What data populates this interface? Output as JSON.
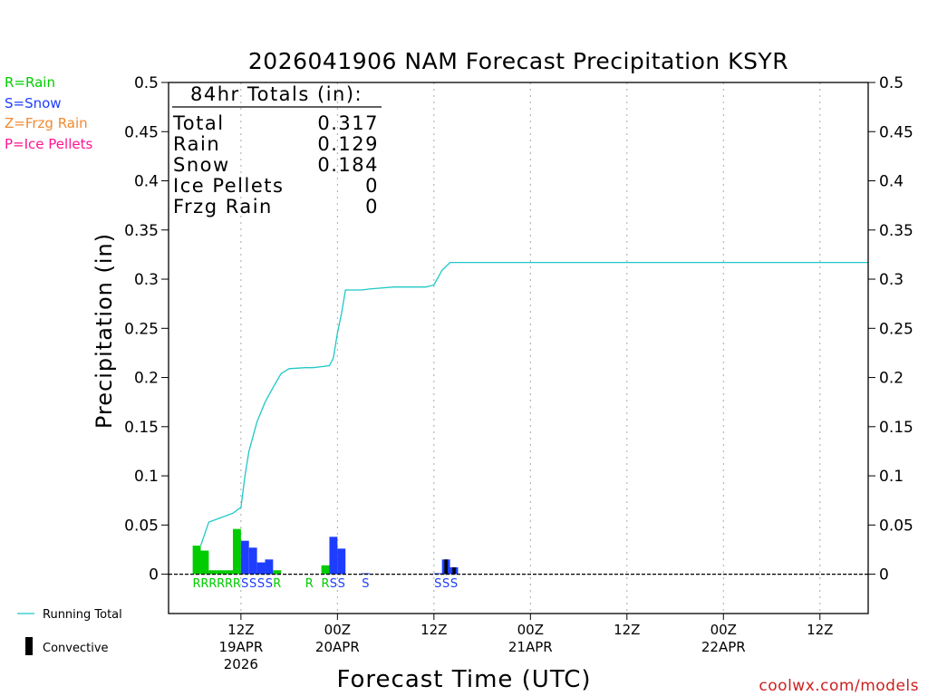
{
  "chart_data": {
    "type": "bar",
    "title": "2026041906 NAM Forecast Precipitation KSYR",
    "ylabel": "Precipitation (in)",
    "xlabel": "Forecast Time (UTC)",
    "ylim": [
      -0.04,
      0.5
    ],
    "xlim": [
      -3,
      84
    ],
    "y_ticks": [
      {
        "value": 0,
        "label": "0"
      },
      {
        "value": 0.05,
        "label": "0.05"
      },
      {
        "value": 0.1,
        "label": "0.1"
      },
      {
        "value": 0.15,
        "label": "0.15"
      },
      {
        "value": 0.2,
        "label": "0.2"
      },
      {
        "value": 0.25,
        "label": "0.25"
      },
      {
        "value": 0.3,
        "label": "0.3"
      },
      {
        "value": 0.35,
        "label": "0.35"
      },
      {
        "value": 0.4,
        "label": "0.4"
      },
      {
        "value": 0.45,
        "label": "0.45"
      },
      {
        "value": 0.5,
        "label": "0.5"
      }
    ],
    "x_ticks": [
      {
        "hour": 6,
        "label": "12Z",
        "date": "19APR",
        "year": "2026"
      },
      {
        "hour": 18,
        "label": "00Z",
        "date": "20APR",
        "year": ""
      },
      {
        "hour": 30,
        "label": "12Z",
        "date": "",
        "year": ""
      },
      {
        "hour": 42,
        "label": "00Z",
        "date": "21APR",
        "year": ""
      },
      {
        "hour": 54,
        "label": "12Z",
        "date": "",
        "year": ""
      },
      {
        "hour": 66,
        "label": "00Z",
        "date": "22APR",
        "year": ""
      },
      {
        "hour": 78,
        "label": "12Z",
        "date": "",
        "year": ""
      }
    ],
    "colors": {
      "rain": "#00cc00",
      "snow": "#1f3dff",
      "frzg": "#f08a30",
      "ice": "#ff1493",
      "running": "#1fc8c8",
      "convective": "#000000"
    },
    "bars": [
      {
        "hour": 1,
        "type": "rain",
        "value": 0.029,
        "convective": 0
      },
      {
        "hour": 2,
        "type": "rain",
        "value": 0.024,
        "convective": 0
      },
      {
        "hour": 3,
        "type": "rain",
        "value": 0.004,
        "convective": 0
      },
      {
        "hour": 4,
        "type": "rain",
        "value": 0.004,
        "convective": 0
      },
      {
        "hour": 5,
        "type": "rain",
        "value": 0.004,
        "convective": 0
      },
      {
        "hour": 6,
        "type": "rain",
        "value": 0.046,
        "convective": 0
      },
      {
        "hour": 7,
        "type": "snow",
        "value": 0.034,
        "convective": 0
      },
      {
        "hour": 8,
        "type": "snow",
        "value": 0.027,
        "convective": 0
      },
      {
        "hour": 9,
        "type": "snow",
        "value": 0.012,
        "convective": 0
      },
      {
        "hour": 10,
        "type": "snow",
        "value": 0.015,
        "convective": 0
      },
      {
        "hour": 11,
        "type": "rain",
        "value": 0.004,
        "convective": 0
      },
      {
        "hour": 17,
        "type": "rain",
        "value": 0.009,
        "convective": 0
      },
      {
        "hour": 18,
        "type": "snow",
        "value": 0.038,
        "convective": 0
      },
      {
        "hour": 19,
        "type": "snow",
        "value": 0.026,
        "convective": 0
      },
      {
        "hour": 22,
        "type": "snow",
        "value": 0.001,
        "convective": 0
      },
      {
        "hour": 31,
        "type": "snow",
        "value": 0.001,
        "convective": 0
      },
      {
        "hour": 32,
        "type": "snow",
        "value": 0.015,
        "convective": 0.015
      },
      {
        "hour": 33,
        "type": "snow",
        "value": 0.007,
        "convective": 0.007
      }
    ],
    "precip_letters": [
      {
        "hour": 1,
        "letter": "R",
        "type": "rain"
      },
      {
        "hour": 2,
        "letter": "R",
        "type": "rain"
      },
      {
        "hour": 3,
        "letter": "R",
        "type": "rain"
      },
      {
        "hour": 4,
        "letter": "R",
        "type": "rain"
      },
      {
        "hour": 5,
        "letter": "R",
        "type": "rain"
      },
      {
        "hour": 6,
        "letter": "R",
        "type": "rain"
      },
      {
        "hour": 7,
        "letter": "S",
        "type": "snow"
      },
      {
        "hour": 8,
        "letter": "S",
        "type": "snow"
      },
      {
        "hour": 9,
        "letter": "S",
        "type": "snow"
      },
      {
        "hour": 10,
        "letter": "S",
        "type": "snow"
      },
      {
        "hour": 11,
        "letter": "R",
        "type": "rain"
      },
      {
        "hour": 15,
        "letter": "R",
        "type": "rain"
      },
      {
        "hour": 17,
        "letter": "R",
        "type": "rain"
      },
      {
        "hour": 18,
        "letter": "S",
        "type": "snow"
      },
      {
        "hour": 19,
        "letter": "S",
        "type": "snow"
      },
      {
        "hour": 22,
        "letter": "S",
        "type": "snow"
      },
      {
        "hour": 31,
        "letter": "S",
        "type": "snow"
      },
      {
        "hour": 32,
        "letter": "S",
        "type": "snow"
      },
      {
        "hour": 33,
        "letter": "S",
        "type": "snow"
      }
    ],
    "running_total": [
      [
        1,
        0.029
      ],
      [
        2,
        0.053
      ],
      [
        5,
        0.062
      ],
      [
        6,
        0.068
      ],
      [
        6.5,
        0.1
      ],
      [
        7,
        0.125
      ],
      [
        8,
        0.155
      ],
      [
        9,
        0.175
      ],
      [
        10,
        0.19
      ],
      [
        11,
        0.204
      ],
      [
        12,
        0.209
      ],
      [
        14,
        0.21
      ],
      [
        15,
        0.21
      ],
      [
        16,
        0.211
      ],
      [
        17,
        0.212
      ],
      [
        17.5,
        0.22
      ],
      [
        18,
        0.245
      ],
      [
        18.5,
        0.265
      ],
      [
        19,
        0.289
      ],
      [
        21,
        0.289
      ],
      [
        22,
        0.29
      ],
      [
        25,
        0.292
      ],
      [
        29,
        0.292
      ],
      [
        30,
        0.294
      ],
      [
        31,
        0.309
      ],
      [
        32,
        0.317
      ],
      [
        84,
        0.317
      ]
    ],
    "totals_box": {
      "header": "84hr Totals (in):",
      "rows": [
        {
          "label": "Total",
          "value": "0.317"
        },
        {
          "label": "Rain",
          "value": "0.129"
        },
        {
          "label": "Snow",
          "value": "0.184"
        },
        {
          "label": "Ice Pellets",
          "value": "0"
        },
        {
          "label": "Frzg Rain",
          "value": "0"
        }
      ]
    },
    "legend_top": [
      {
        "text": "R=Rain",
        "color": "#00cc00"
      },
      {
        "text": "S=Snow",
        "color": "#1f3dff"
      },
      {
        "text": "Z=Frzg Rain",
        "color": "#f08a30"
      },
      {
        "text": "P=Ice Pellets",
        "color": "#ff1493"
      }
    ],
    "legend_bottom": {
      "running": "Running Total",
      "convective": "Convective"
    },
    "watermark": "coolwx.com/models"
  }
}
